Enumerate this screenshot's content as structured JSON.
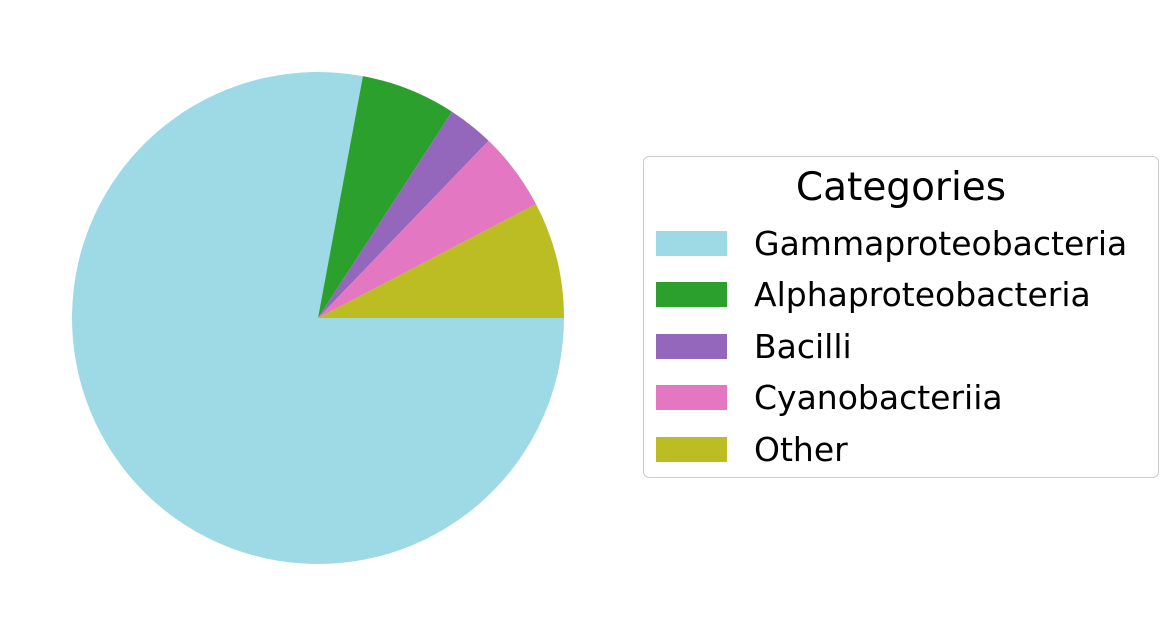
{
  "chart_data": {
    "type": "pie",
    "legend_title": "Categories",
    "legend_position": "right",
    "start_angle_deg": 0,
    "direction": "clockwise",
    "slices": [
      {
        "label": "Gammaproteobacteria",
        "value": 77.3,
        "color": "#9edae5"
      },
      {
        "label": "Alphaproteobacteria",
        "value": 6.2,
        "color": "#2ca02c"
      },
      {
        "label": "Bacilli",
        "value": 3.0,
        "color": "#9467bd"
      },
      {
        "label": "Cyanobacteriia",
        "value": 5.1,
        "color": "#e377c2"
      },
      {
        "label": "Other",
        "value": 7.6,
        "color": "#bcbd22"
      }
    ]
  }
}
